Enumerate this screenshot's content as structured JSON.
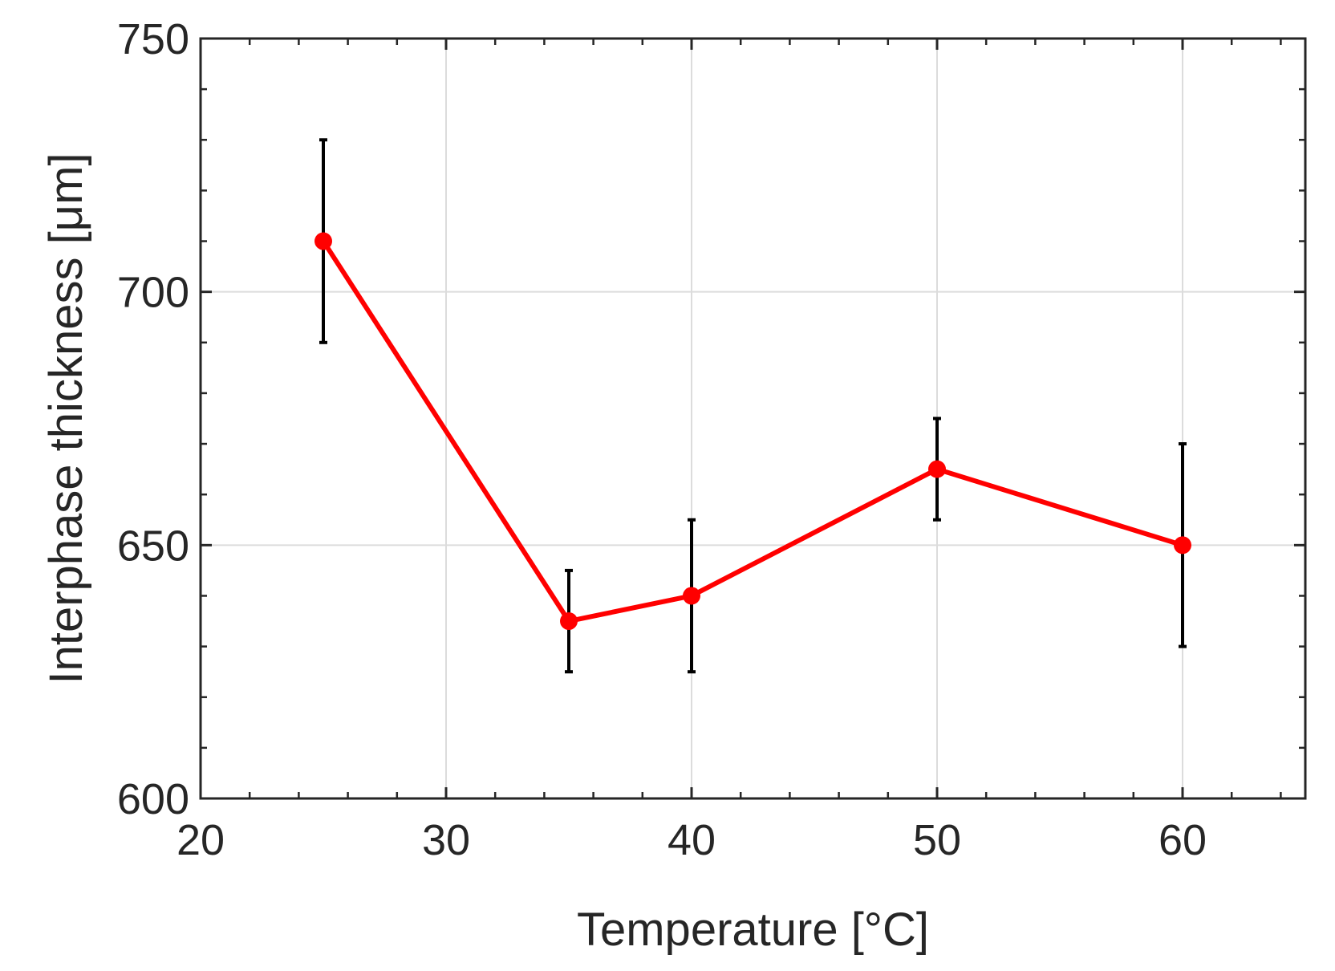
{
  "chart_data": {
    "type": "line",
    "title": "",
    "xlabel": "Temperature [°C]",
    "ylabel": "Interphase thickness [μm]",
    "xlim": [
      20,
      65
    ],
    "ylim": [
      600,
      750
    ],
    "xticks": [
      20,
      30,
      40,
      50,
      60
    ],
    "yticks": [
      600,
      650,
      700,
      750
    ],
    "xtick_labels": [
      "20",
      "30",
      "40",
      "50",
      "60"
    ],
    "ytick_labels": [
      "600",
      "650",
      "700",
      "750"
    ],
    "grid": true,
    "series": [
      {
        "name": "Interphase thickness",
        "color": "#ff0000",
        "x": [
          25,
          35,
          40,
          50,
          60
        ],
        "y": [
          710,
          635,
          640,
          665,
          650
        ],
        "err_low": [
          690,
          625,
          625,
          655,
          630
        ],
        "err_high": [
          730,
          645,
          655,
          675,
          670
        ]
      }
    ]
  },
  "colors": {
    "line": "#ff0000",
    "errorbar": "#000000",
    "grid": "#dcdcdc",
    "axis": "#262626"
  }
}
